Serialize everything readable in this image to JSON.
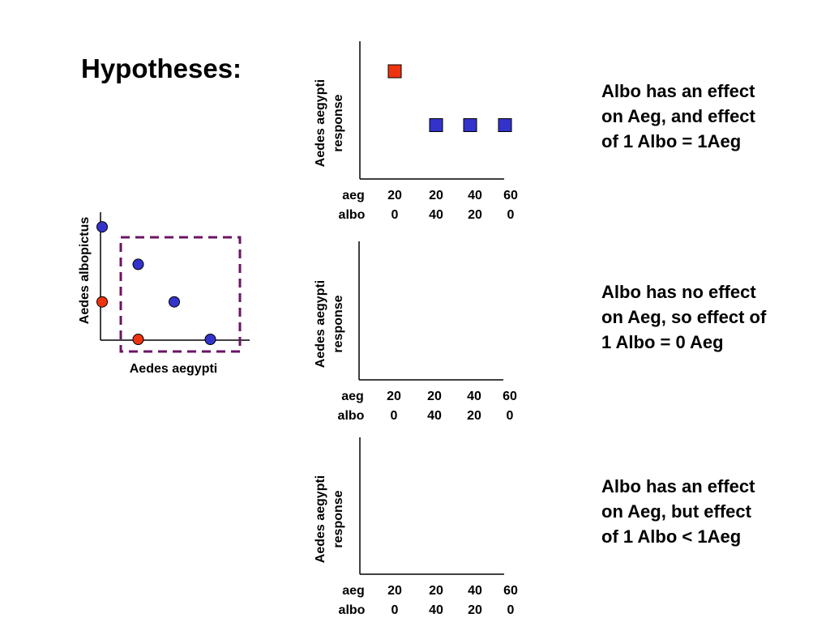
{
  "title": "Hypotheses:",
  "scatter": {
    "xlabel": "Aedes aegypti",
    "ylabel": "Aedes albopictus",
    "points": [
      {
        "x": 0,
        "y": 60,
        "color": "blue"
      },
      {
        "x": 20,
        "y": 40,
        "color": "blue"
      },
      {
        "x": 0,
        "y": 20,
        "color": "red"
      },
      {
        "x": 40,
        "y": 20,
        "color": "blue"
      },
      {
        "x": 20,
        "y": 0,
        "color": "red"
      },
      {
        "x": 60,
        "y": 0,
        "color": "blue"
      }
    ]
  },
  "panels": [
    {
      "ylabel": [
        "Aedes aegypti",
        "response"
      ],
      "aeg_label": "aeg",
      "albo_label": "albo",
      "aeg": [
        "20",
        "20",
        "40",
        "60"
      ],
      "albo": [
        "0",
        "40",
        "20",
        "0"
      ],
      "text": [
        "Albo has an effect",
        "on Aeg, and effect",
        "of 1 Albo = 1Aeg"
      ]
    },
    {
      "ylabel": [
        "Aedes aegypti",
        "response"
      ],
      "aeg_label": "aeg",
      "albo_label": "albo",
      "aeg": [
        "20",
        "20",
        "40",
        "60"
      ],
      "albo": [
        "0",
        "40",
        "20",
        "0"
      ],
      "text": [
        "Albo has no effect",
        "on Aeg, so effect of",
        "1 Albo = 0 Aeg"
      ]
    },
    {
      "ylabel": [
        "Aedes aegypti",
        "response"
      ],
      "aeg_label": "aeg",
      "albo_label": "albo",
      "aeg": [
        "20",
        "20",
        "40",
        "60"
      ],
      "albo": [
        "0",
        "40",
        "20",
        "0"
      ],
      "text": [
        "Albo has an effect",
        "on Aeg, but effect",
        "of 1 Albo < 1Aeg"
      ]
    }
  ],
  "chart_data": [
    {
      "type": "scatter",
      "xlabel": "Aedes aegypti",
      "ylabel": "Aedes albopictus",
      "xlim": [
        0,
        80
      ],
      "ylim": [
        0,
        60
      ],
      "series": [
        {
          "color": "#3333cc",
          "x": [
            0,
            20,
            40,
            60
          ],
          "y": [
            60,
            40,
            20,
            0
          ]
        },
        {
          "color": "#ee3311",
          "x": [
            0,
            20
          ],
          "y": [
            20,
            0
          ]
        }
      ]
    },
    {
      "type": "scatter",
      "ylabel": "Aedes aegypti response",
      "categories": [
        "20/0",
        "20/40",
        "40/20",
        "60/0"
      ],
      "series": [
        {
          "color": "#ee3311",
          "x": [
            "20/0"
          ],
          "y": [
            2.0
          ]
        },
        {
          "color": "#3333cc",
          "x": [
            "20/40",
            "40/20",
            "60/0"
          ],
          "y": [
            1.0,
            1.0,
            1.0
          ]
        }
      ]
    },
    {
      "type": "scatter",
      "ylabel": "Aedes aegypti response",
      "categories": [
        "20/0",
        "20/40",
        "40/20",
        "60/0"
      ],
      "series": []
    },
    {
      "type": "scatter",
      "ylabel": "Aedes aegypti response",
      "categories": [
        "20/0",
        "20/40",
        "40/20",
        "60/0"
      ],
      "series": []
    }
  ]
}
